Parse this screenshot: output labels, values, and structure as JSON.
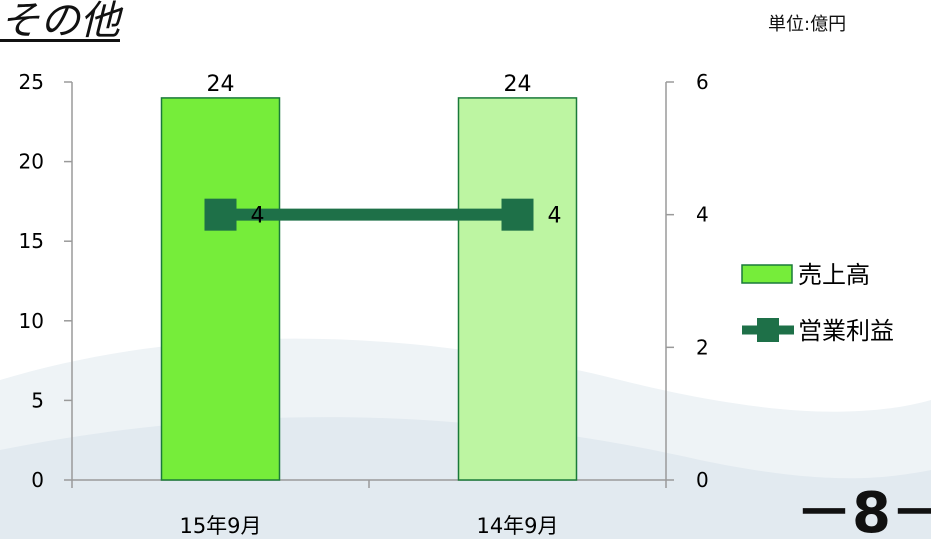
{
  "slide": {
    "title": "その他",
    "unit": "単位:億円",
    "page_number": "－8－"
  },
  "colors": {
    "bar_current": "#76ed3a",
    "bar_previous": "#bdf5a2",
    "bar_border": "#1a7a3a",
    "line": "#1e7048",
    "axis": "#9a9a9a"
  },
  "chart_data": {
    "type": "bar",
    "categories": [
      "15年9月",
      "14年9月"
    ],
    "series": [
      {
        "name": "売上高",
        "type": "bar",
        "axis": "left",
        "values": [
          24,
          24
        ]
      },
      {
        "name": "営業利益",
        "type": "line",
        "axis": "right",
        "values": [
          4,
          4
        ]
      }
    ],
    "y_left": {
      "min": 0,
      "max": 25,
      "ticks": [
        0,
        5,
        10,
        15,
        20,
        25
      ]
    },
    "y_right": {
      "min": 0,
      "max": 6,
      "ticks": [
        0,
        2,
        4,
        6
      ]
    },
    "grid": false,
    "legend": "right"
  }
}
